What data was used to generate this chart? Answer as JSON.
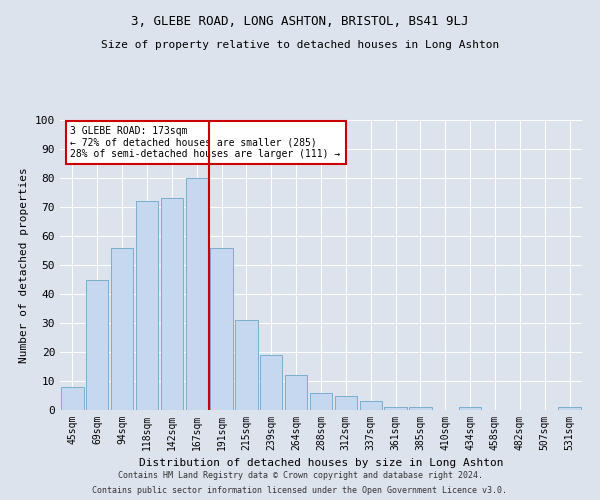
{
  "title1": "3, GLEBE ROAD, LONG ASHTON, BRISTOL, BS41 9LJ",
  "title2": "Size of property relative to detached houses in Long Ashton",
  "xlabel": "Distribution of detached houses by size in Long Ashton",
  "ylabel": "Number of detached properties",
  "categories": [
    "45sqm",
    "69sqm",
    "94sqm",
    "118sqm",
    "142sqm",
    "167sqm",
    "191sqm",
    "215sqm",
    "239sqm",
    "264sqm",
    "288sqm",
    "312sqm",
    "337sqm",
    "361sqm",
    "385sqm",
    "410sqm",
    "434sqm",
    "458sqm",
    "482sqm",
    "507sqm",
    "531sqm"
  ],
  "values": [
    8,
    45,
    56,
    72,
    73,
    80,
    56,
    31,
    19,
    12,
    6,
    5,
    3,
    1,
    1,
    0,
    1,
    0,
    0,
    0,
    1
  ],
  "bar_color": "#c5d8ef",
  "bar_edge_color": "#7aadce",
  "background_color": "#dde3ed",
  "grid_color": "#ffffff",
  "vline_color": "#cc0000",
  "vline_pos": 5.5,
  "annotation_title": "3 GLEBE ROAD: 173sqm",
  "annotation_line1": "← 72% of detached houses are smaller (285)",
  "annotation_line2": "28% of semi-detached houses are larger (111) →",
  "annotation_box_color": "#ffffff",
  "annotation_box_edge": "#cc0000",
  "footer1": "Contains HM Land Registry data © Crown copyright and database right 2024.",
  "footer2": "Contains public sector information licensed under the Open Government Licence v3.0.",
  "ylim": [
    0,
    100
  ],
  "yticks": [
    0,
    10,
    20,
    30,
    40,
    50,
    60,
    70,
    80,
    90,
    100
  ],
  "figsize": [
    6.0,
    5.0
  ],
  "dpi": 100
}
